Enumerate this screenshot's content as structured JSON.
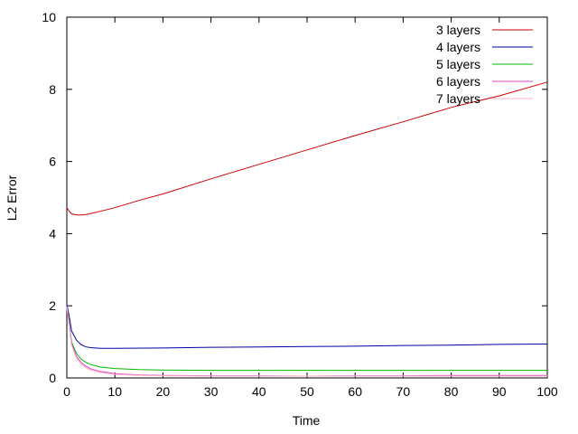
{
  "chart_data": {
    "type": "line",
    "title": "",
    "xlabel": "Time",
    "ylabel": "L2 Error",
    "xlim": [
      0,
      100
    ],
    "ylim": [
      0,
      10
    ],
    "xticks": [
      0,
      10,
      20,
      30,
      40,
      50,
      60,
      70,
      80,
      90,
      100
    ],
    "yticks": [
      0,
      2,
      4,
      6,
      8,
      10
    ],
    "grid": false,
    "legend_position": "top-right",
    "series": [
      {
        "name": "3 layers",
        "color": "#cc0000",
        "x": [
          0,
          0.5,
          1,
          2,
          3,
          4,
          5,
          7,
          10,
          15,
          20,
          30,
          40,
          50,
          60,
          70,
          80,
          90,
          100
        ],
        "y": [
          4.72,
          4.62,
          4.55,
          4.52,
          4.52,
          4.53,
          4.56,
          4.62,
          4.72,
          4.92,
          5.1,
          5.52,
          5.92,
          6.32,
          6.72,
          7.1,
          7.5,
          7.82,
          8.2
        ]
      },
      {
        "name": "4 layers",
        "color": "#0000aa",
        "x": [
          0,
          0.5,
          1,
          2,
          3,
          4,
          5,
          7,
          10,
          20,
          30,
          40,
          50,
          60,
          70,
          80,
          90,
          100
        ],
        "y": [
          2.05,
          1.7,
          1.3,
          1.05,
          0.92,
          0.86,
          0.84,
          0.82,
          0.82,
          0.83,
          0.85,
          0.86,
          0.87,
          0.88,
          0.9,
          0.91,
          0.93,
          0.94
        ]
      },
      {
        "name": "5 layers",
        "color": "#00bb00",
        "x": [
          0,
          0.5,
          1,
          2,
          3,
          4,
          5,
          7,
          10,
          15,
          20,
          30,
          40,
          50,
          60,
          70,
          80,
          90,
          100
        ],
        "y": [
          2.0,
          1.5,
          1.0,
          0.68,
          0.52,
          0.43,
          0.37,
          0.3,
          0.26,
          0.23,
          0.22,
          0.21,
          0.21,
          0.21,
          0.21,
          0.21,
          0.21,
          0.21,
          0.21
        ]
      },
      {
        "name": "6 layers",
        "color": "#dd44cc",
        "x": [
          0,
          0.5,
          1,
          2,
          3,
          4,
          5,
          7,
          10,
          15,
          20,
          30,
          40,
          50,
          60,
          70,
          80,
          90,
          100
        ],
        "y": [
          2.0,
          1.45,
          0.95,
          0.6,
          0.42,
          0.32,
          0.25,
          0.18,
          0.12,
          0.08,
          0.07,
          0.06,
          0.06,
          0.05,
          0.06,
          0.06,
          0.07,
          0.07,
          0.07
        ]
      },
      {
        "name": "7 layers",
        "color": "#ffb6c1",
        "x": [
          0,
          0.5,
          1,
          2,
          3,
          4,
          5,
          7,
          10,
          15,
          20,
          30,
          40,
          50,
          60,
          70,
          80,
          90,
          100
        ],
        "y": [
          1.95,
          1.4,
          0.9,
          0.55,
          0.38,
          0.28,
          0.21,
          0.15,
          0.1,
          0.07,
          0.06,
          0.05,
          0.05,
          0.05,
          0.05,
          0.05,
          0.05,
          0.05,
          0.05
        ]
      }
    ]
  }
}
